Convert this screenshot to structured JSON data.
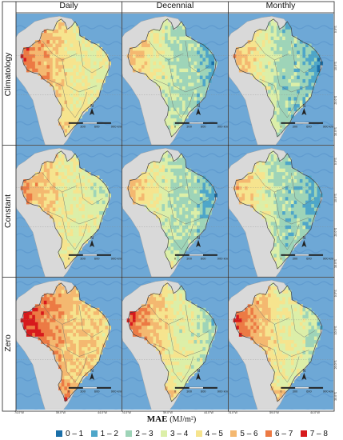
{
  "columns": [
    "Daily",
    "Decennial",
    "Monthly"
  ],
  "rows": [
    "Climatology",
    "Constant",
    "Zero"
  ],
  "axis": {
    "x_ticks": [
      "74.0°W",
      "59.0°W",
      "44.0°W"
    ],
    "y_ticks": [
      "0.0°S",
      "10.0°S",
      "20.0°S",
      "30.0°S"
    ]
  },
  "scale_bar": {
    "ticks": [
      "0",
      "300",
      "600",
      "900 km"
    ]
  },
  "north_label": "N",
  "legend": {
    "title": "MAE",
    "unit": "(MJ/m²)",
    "items": [
      {
        "label": "0 – 1",
        "color": "#1b6fa8"
      },
      {
        "label": "1 – 2",
        "color": "#4ea6c9"
      },
      {
        "label": "2 – 3",
        "color": "#9ed4b8"
      },
      {
        "label": "3 – 4",
        "color": "#dcefa8"
      },
      {
        "label": "4 – 5",
        "color": "#f6e48e"
      },
      {
        "label": "5 – 6",
        "color": "#f4b870"
      },
      {
        "label": "6 – 7",
        "color": "#ec7a44"
      },
      {
        "label": "7 – 8",
        "color": "#d7191c"
      }
    ]
  },
  "colors": {
    "ocean": "#6ea8d6",
    "ocean_deep": "#4d8cc4",
    "land": "#d9d9d9",
    "border": "#444444"
  }
}
